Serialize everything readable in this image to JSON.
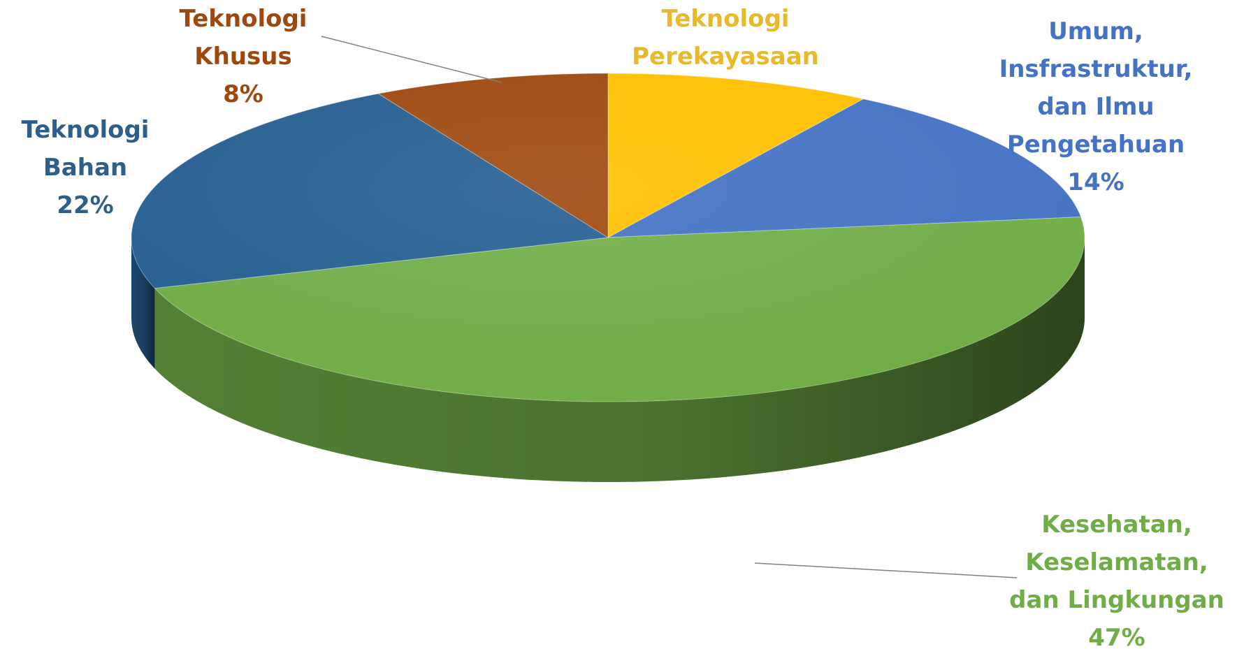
{
  "chart_data": {
    "type": "pie",
    "title": "",
    "slices": [
      {
        "label_lines": [
          "Teknologi",
          "Perekayasaan"
        ],
        "value": 9,
        "percent_label": "",
        "color": "#FFC000"
      },
      {
        "label_lines": [
          "Umum,",
          "Insfrastruktur,",
          "dan Ilmu",
          "Pengetahuan"
        ],
        "value": 14,
        "percent_label": "14%",
        "color": "#4472C4"
      },
      {
        "label_lines": [
          "Kesehatan,",
          "Keselamatan,",
          "dan Lingkungan"
        ],
        "value": 47,
        "percent_label": "47%",
        "color": "#70AD47"
      },
      {
        "label_lines": [
          "Teknologi",
          "Bahan"
        ],
        "value": 22,
        "percent_label": "22%",
        "color": "#255E91"
      },
      {
        "label_lines": [
          "Teknologi",
          "Khusus"
        ],
        "value": 8,
        "percent_label": "8%",
        "color": "#9E480E"
      }
    ],
    "label_colors": [
      "#E8B92A",
      "#4472C4",
      "#70AD47",
      "#2E5F8A",
      "#9E480E"
    ],
    "leader_color": "#7F7F7F",
    "style": "3d"
  }
}
